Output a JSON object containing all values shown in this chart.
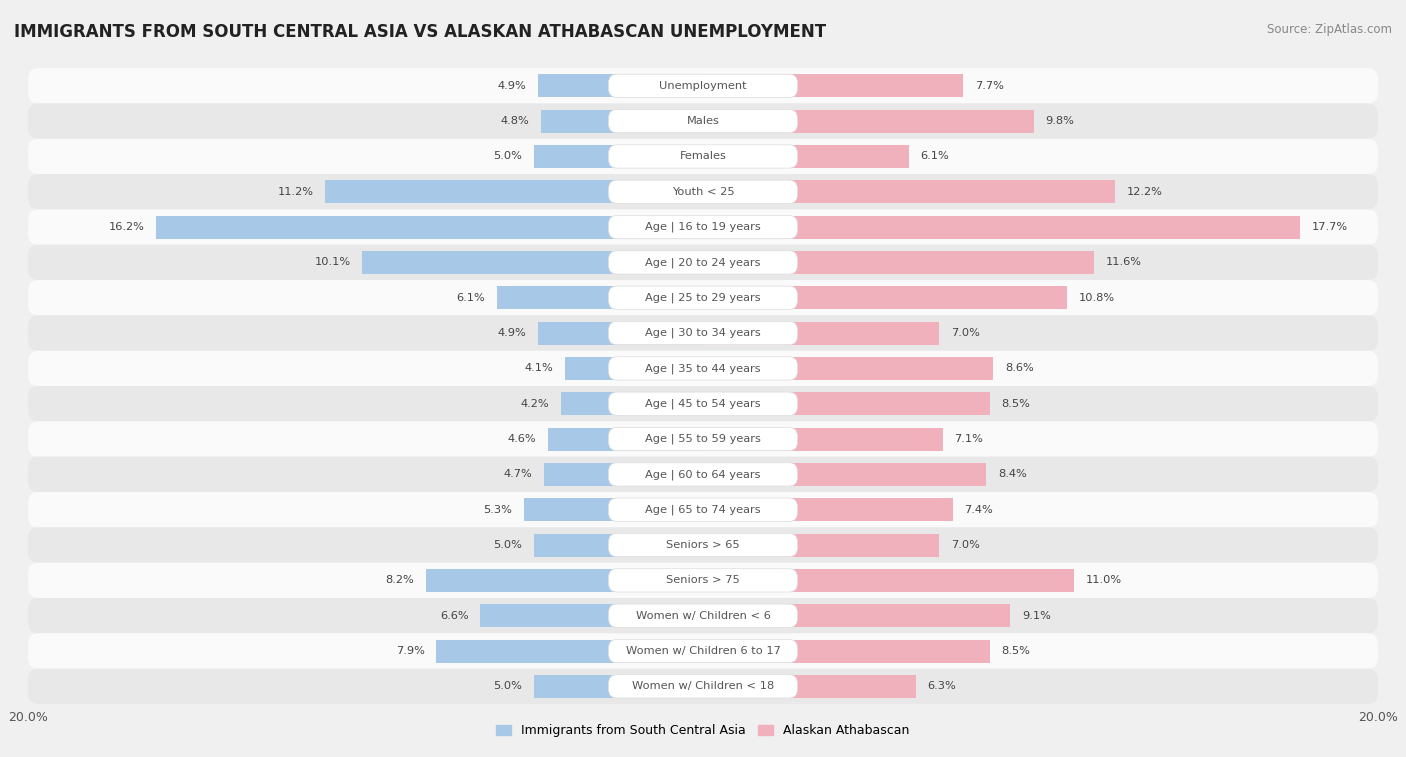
{
  "title": "IMMIGRANTS FROM SOUTH CENTRAL ASIA VS ALASKAN ATHABASCAN UNEMPLOYMENT",
  "source": "Source: ZipAtlas.com",
  "categories": [
    "Unemployment",
    "Males",
    "Females",
    "Youth < 25",
    "Age | 16 to 19 years",
    "Age | 20 to 24 years",
    "Age | 25 to 29 years",
    "Age | 30 to 34 years",
    "Age | 35 to 44 years",
    "Age | 45 to 54 years",
    "Age | 55 to 59 years",
    "Age | 60 to 64 years",
    "Age | 65 to 74 years",
    "Seniors > 65",
    "Seniors > 75",
    "Women w/ Children < 6",
    "Women w/ Children 6 to 17",
    "Women w/ Children < 18"
  ],
  "left_values": [
    4.9,
    4.8,
    5.0,
    11.2,
    16.2,
    10.1,
    6.1,
    4.9,
    4.1,
    4.2,
    4.6,
    4.7,
    5.3,
    5.0,
    8.2,
    6.6,
    7.9,
    5.0
  ],
  "right_values": [
    7.7,
    9.8,
    6.1,
    12.2,
    17.7,
    11.6,
    10.8,
    7.0,
    8.6,
    8.5,
    7.1,
    8.4,
    7.4,
    7.0,
    11.0,
    9.1,
    8.5,
    6.3
  ],
  "left_color": "#a8c8e8",
  "right_color": "#f0b0bc",
  "left_label": "Immigrants from South Central Asia",
  "right_label": "Alaskan Athabascan",
  "axis_limit": 20.0,
  "background_color": "#f0f0f0",
  "row_color_light": "#fafafa",
  "row_color_dark": "#e8e8e8",
  "title_fontsize": 12,
  "source_fontsize": 8.5,
  "bar_height": 0.65,
  "label_box_color": "#ffffff",
  "label_text_color": "#555555",
  "value_text_color": "#444444"
}
